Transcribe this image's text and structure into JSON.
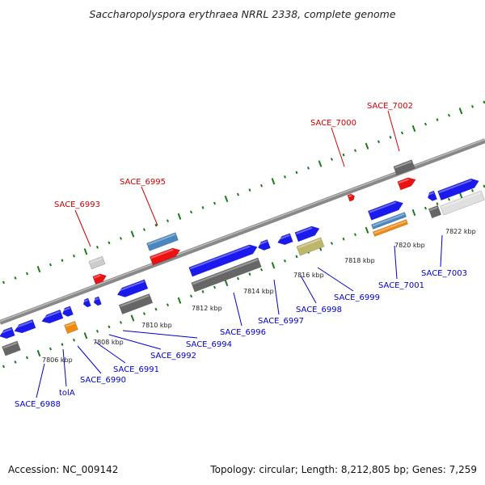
{
  "title": "Saccharopolyspora erythraea NRRL 2338, complete genome",
  "footer": {
    "accession": "Accession: NC_009142",
    "topology": "Topology: circular; Length: 8,212,805 bp; Genes: 7,259"
  },
  "colors": {
    "forward_gene": "#1a1aee",
    "reverse_gene": "#1a1aee",
    "rna": "#e0e0e0",
    "red_feature": "#ee1111",
    "grey_feature": "#666666",
    "steelblue_feature": "#4a86c0",
    "orange_feature": "#f08a10",
    "khaki_feature": "#bdb76b",
    "axis": "#888888",
    "tick": "#1e7a1e",
    "label_red": "#cc0000",
    "label_blue": "#0000cc"
  },
  "scale": {
    "ticks": [
      "7806 kbp",
      "7808 kbp",
      "7810 kbp",
      "7812 kbp",
      "7814 kbp",
      "7816 kbp",
      "7818 kbp",
      "7820 kbp",
      "7822 kbp"
    ]
  },
  "top_labels": [
    {
      "id": "SACE_6993",
      "text": "SACE_6993"
    },
    {
      "id": "SACE_6995",
      "text": "SACE_6995"
    },
    {
      "id": "SACE_7000",
      "text": "SACE_7000"
    },
    {
      "id": "SACE_7002",
      "text": "SACE_7002"
    }
  ],
  "bottom_labels": [
    {
      "id": "SACE_6988",
      "text": "SACE_6988"
    },
    {
      "id": "tolA",
      "text": "tolA"
    },
    {
      "id": "SACE_6990",
      "text": "SACE_6990"
    },
    {
      "id": "SACE_6991",
      "text": "SACE_6991"
    },
    {
      "id": "SACE_6992",
      "text": "SACE_6992"
    },
    {
      "id": "SACE_6994",
      "text": "SACE_6994"
    },
    {
      "id": "SACE_6996",
      "text": "SACE_6996"
    },
    {
      "id": "SACE_6997",
      "text": "SACE_6997"
    },
    {
      "id": "SACE_6998",
      "text": "SACE_6998"
    },
    {
      "id": "SACE_6999",
      "text": "SACE_6999"
    },
    {
      "id": "SACE_7001",
      "text": "SACE_7001"
    },
    {
      "id": "SACE_7003",
      "text": "SACE_7003"
    }
  ]
}
